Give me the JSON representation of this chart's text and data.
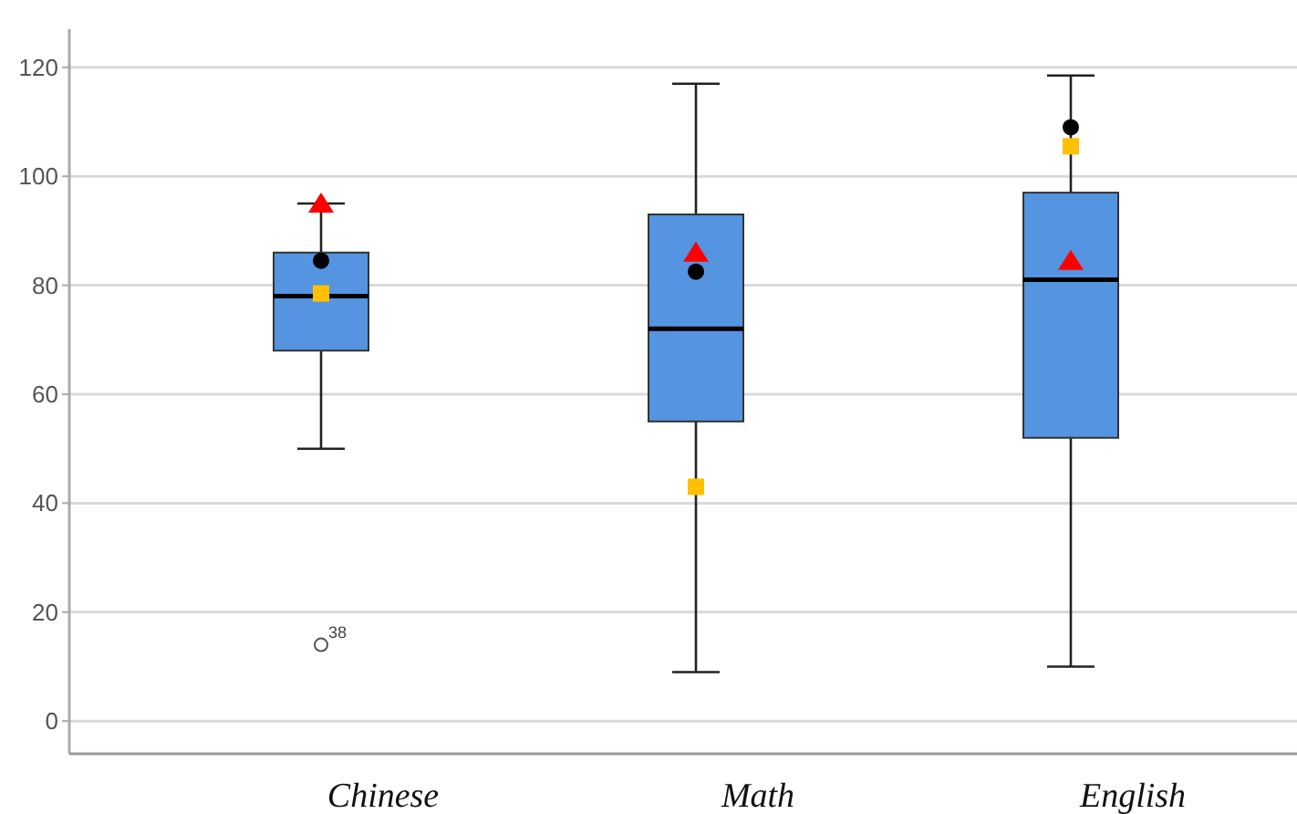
{
  "chart_data": {
    "type": "box",
    "categories": [
      "Chinese",
      "Math",
      "English"
    ],
    "ylim": [
      -6,
      127
    ],
    "yticks": [
      0,
      20,
      40,
      60,
      80,
      100,
      120
    ],
    "grid": "y",
    "series": [
      {
        "color": "#5594e0",
        "boxes": [
          {
            "low": 50,
            "q1": 68,
            "median": 78,
            "q3": 86,
            "high": 95,
            "outliers": [
              14
            ]
          },
          {
            "low": 9,
            "q1": 55,
            "median": 72,
            "q3": 93,
            "high": 117
          },
          {
            "low": 10,
            "q1": 52,
            "median": 81,
            "q3": 97,
            "high": 118.5
          }
        ]
      },
      {
        "type": "scatter",
        "marker": "triangle",
        "color": "#ff0000",
        "x": [
          "Chinese",
          "Math",
          "English"
        ],
        "values": [
          95,
          86,
          84.5
        ]
      },
      {
        "type": "scatter",
        "marker": "circle",
        "color": "#000000",
        "x": [
          "Chinese",
          "Math",
          "English"
        ],
        "values": [
          84.5,
          82.5,
          109
        ]
      },
      {
        "type": "scatter",
        "marker": "square",
        "color": "#ffc000",
        "x": [
          "Chinese",
          "Math",
          "English"
        ],
        "values": [
          78.5,
          43,
          105.5
        ]
      }
    ],
    "annotations": [
      "38"
    ]
  }
}
